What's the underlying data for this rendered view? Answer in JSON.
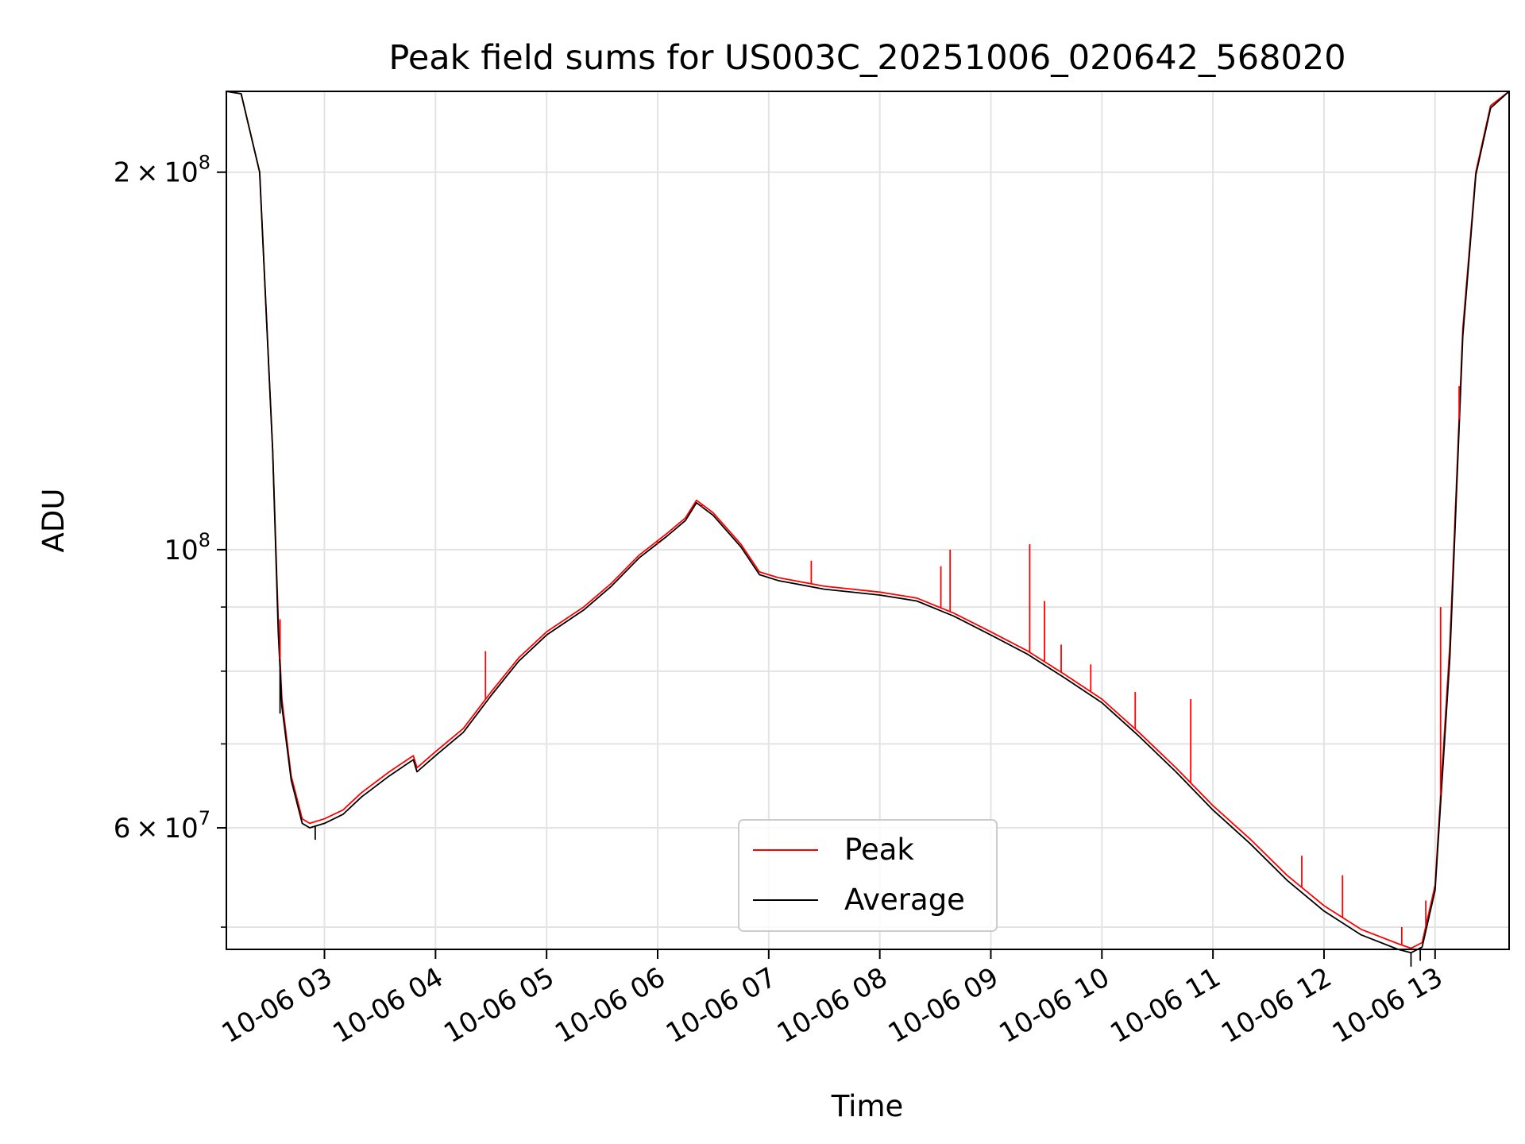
{
  "chart_data": {
    "type": "line",
    "title": "Peak field sums for US003C_20251006_020642_568020",
    "xlabel": "Time",
    "ylabel": "ADU",
    "x_axis": {
      "scale": "time",
      "date": "2025-10-06",
      "range": [
        "02:07",
        "13:40"
      ],
      "tick_values": [
        "03:00",
        "04:00",
        "05:00",
        "06:00",
        "07:00",
        "08:00",
        "09:00",
        "10:00",
        "11:00",
        "12:00",
        "13:00"
      ],
      "tick_labels": [
        "10-06 03",
        "10-06 04",
        "10-06 05",
        "10-06 06",
        "10-06 07",
        "10-06 08",
        "10-06 09",
        "10-06 10",
        "10-06 11",
        "10-06 12",
        "10-06 13"
      ],
      "tick_rotation_deg": 30
    },
    "y_axis": {
      "scale": "log",
      "range": [
        48000000,
        232000000
      ],
      "major_ticks": [
        {
          "value": 60000000,
          "mantissa": "6",
          "exponent": "7"
        },
        {
          "value": 100000000,
          "mantissa": "",
          "exponent": "8"
        },
        {
          "value": 200000000,
          "mantissa": "2",
          "exponent": "8"
        }
      ],
      "minor_ticks": [
        50000000,
        70000000,
        80000000,
        90000000
      ]
    },
    "grid": true,
    "legend": {
      "placement": "lower-center",
      "entries": [
        "Peak",
        "Average"
      ]
    },
    "series": [
      {
        "name": "Peak",
        "color": "#ff0000",
        "points": [
          [
            "02:07",
            232000000
          ],
          [
            "02:15",
            231000000
          ],
          [
            "02:25",
            200000000
          ],
          [
            "02:32",
            120000000
          ],
          [
            "02:35",
            88000000
          ],
          [
            "02:37",
            76000000
          ],
          [
            "02:42",
            66000000
          ],
          [
            "02:48",
            61000000
          ],
          [
            "02:52",
            60500000
          ],
          [
            "03:00",
            61000000
          ],
          [
            "03:10",
            62000000
          ],
          [
            "03:20",
            64000000
          ],
          [
            "03:35",
            66500000
          ],
          [
            "03:48",
            68500000
          ],
          [
            "03:50",
            67000000
          ],
          [
            "04:00",
            69000000
          ],
          [
            "04:15",
            72000000
          ],
          [
            "04:30",
            77000000
          ],
          [
            "04:45",
            82000000
          ],
          [
            "05:00",
            86000000
          ],
          [
            "05:20",
            90000000
          ],
          [
            "05:35",
            94000000
          ],
          [
            "05:50",
            99000000
          ],
          [
            "06:05",
            103000000
          ],
          [
            "06:15",
            106000000
          ],
          [
            "06:21",
            109500000
          ],
          [
            "06:30",
            107000000
          ],
          [
            "06:45",
            101000000
          ],
          [
            "06:55",
            96000000
          ],
          [
            "07:05",
            95000000
          ],
          [
            "07:30",
            93500000
          ],
          [
            "08:00",
            92500000
          ],
          [
            "08:20",
            91500000
          ],
          [
            "08:40",
            89000000
          ],
          [
            "09:00",
            86000000
          ],
          [
            "09:20",
            83000000
          ],
          [
            "09:40",
            79500000
          ],
          [
            "10:00",
            76000000
          ],
          [
            "10:20",
            71500000
          ],
          [
            "10:40",
            67000000
          ],
          [
            "11:00",
            62500000
          ],
          [
            "11:20",
            58800000
          ],
          [
            "11:40",
            55000000
          ],
          [
            "12:00",
            52000000
          ],
          [
            "12:20",
            49800000
          ],
          [
            "12:40",
            48500000
          ],
          [
            "12:47",
            48100000
          ],
          [
            "12:53",
            48600000
          ],
          [
            "13:00",
            54000000
          ],
          [
            "13:08",
            84000000
          ],
          [
            "13:15",
            150000000
          ],
          [
            "13:22",
            200000000
          ],
          [
            "13:30",
            226000000
          ],
          [
            "13:40",
            232000000
          ]
        ]
      },
      {
        "name": "Average",
        "color": "#000000",
        "points": [
          [
            "02:07",
            232000000
          ],
          [
            "02:15",
            231000000
          ],
          [
            "02:25",
            200000000
          ],
          [
            "02:32",
            120000000
          ],
          [
            "02:35",
            86000000
          ],
          [
            "02:37",
            75000000
          ],
          [
            "02:42",
            65500000
          ],
          [
            "02:48",
            60500000
          ],
          [
            "02:52",
            60000000
          ],
          [
            "03:00",
            60500000
          ],
          [
            "03:10",
            61500000
          ],
          [
            "03:20",
            63500000
          ],
          [
            "03:35",
            66000000
          ],
          [
            "03:48",
            68000000
          ],
          [
            "03:50",
            66500000
          ],
          [
            "04:00",
            68500000
          ],
          [
            "04:15",
            71500000
          ],
          [
            "04:30",
            76500000
          ],
          [
            "04:45",
            81500000
          ],
          [
            "05:00",
            85500000
          ],
          [
            "05:20",
            89500000
          ],
          [
            "05:35",
            93500000
          ],
          [
            "05:50",
            98500000
          ],
          [
            "06:05",
            102500000
          ],
          [
            "06:15",
            105500000
          ],
          [
            "06:21",
            109000000
          ],
          [
            "06:30",
            106500000
          ],
          [
            "06:45",
            100500000
          ],
          [
            "06:55",
            95500000
          ],
          [
            "07:05",
            94500000
          ],
          [
            "07:30",
            93000000
          ],
          [
            "08:00",
            92000000
          ],
          [
            "08:20",
            91000000
          ],
          [
            "08:40",
            88500000
          ],
          [
            "09:00",
            85500000
          ],
          [
            "09:20",
            82500000
          ],
          [
            "09:40",
            79000000
          ],
          [
            "10:00",
            75500000
          ],
          [
            "10:20",
            71000000
          ],
          [
            "10:40",
            66500000
          ],
          [
            "11:00",
            62000000
          ],
          [
            "11:20",
            58300000
          ],
          [
            "11:40",
            54500000
          ],
          [
            "12:00",
            51500000
          ],
          [
            "12:20",
            49300000
          ],
          [
            "12:40",
            48000000
          ],
          [
            "12:47",
            47700000
          ],
          [
            "12:53",
            48200000
          ],
          [
            "13:00",
            53500000
          ],
          [
            "13:08",
            82000000
          ],
          [
            "13:15",
            148000000
          ],
          [
            "13:22",
            199000000
          ],
          [
            "13:30",
            225000000
          ],
          [
            "13:40",
            232000000
          ]
        ]
      }
    ],
    "annotations": {
      "peak_spikes": [
        [
          "02:36",
          88000000
        ],
        [
          "04:27",
          83000000
        ],
        [
          "06:00",
          101000000
        ],
        [
          "06:24",
          108000000
        ],
        [
          "07:23",
          98000000
        ],
        [
          "08:33",
          97000000
        ],
        [
          "08:38",
          100000000
        ],
        [
          "09:21",
          101000000
        ],
        [
          "09:29",
          91000000
        ],
        [
          "09:38",
          84000000
        ],
        [
          "09:54",
          81000000
        ],
        [
          "10:18",
          77000000
        ],
        [
          "10:48",
          76000000
        ],
        [
          "11:48",
          57000000
        ],
        [
          "12:10",
          55000000
        ],
        [
          "12:42",
          50000000
        ],
        [
          "12:55",
          52500000
        ],
        [
          "13:03",
          90000000
        ],
        [
          "13:13",
          135000000
        ]
      ],
      "average_dips": [
        [
          "02:36",
          74000000
        ],
        [
          "02:55",
          58700000
        ],
        [
          "12:47",
          46500000
        ],
        [
          "12:52",
          47000000
        ]
      ]
    }
  }
}
